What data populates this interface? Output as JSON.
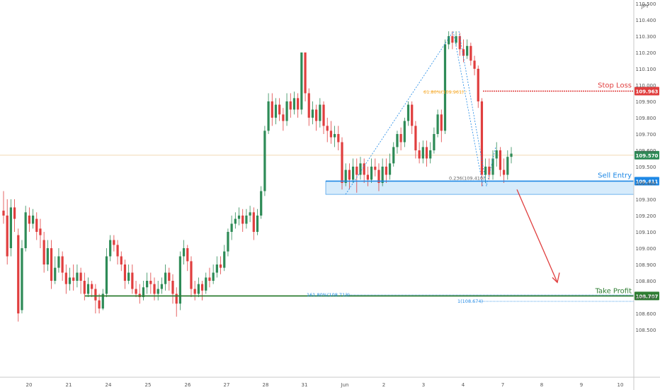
{
  "chart_data": {
    "type": "candlestick",
    "currency_label": "JPY",
    "price_axis": {
      "ticks": [
        "110.500",
        "110.400",
        "110.300",
        "110.200",
        "110.100",
        "110.000",
        "109.900",
        "109.800",
        "109.700",
        "109.600",
        "109.500",
        "109.400",
        "109.300",
        "109.200",
        "109.100",
        "109.000",
        "108.900",
        "108.800",
        "108.700",
        "108.600",
        "108.500"
      ],
      "range": [
        108.47,
        110.55
      ]
    },
    "time_axis": {
      "ticks": [
        "20",
        "21",
        "24",
        "25",
        "26",
        "27",
        "28",
        "31",
        "Jun",
        "2",
        "3",
        "4",
        "7",
        "8",
        "9",
        "10"
      ]
    },
    "colors": {
      "up": "#2e8b57",
      "down": "#e03e3e",
      "stop_loss": "#e03e3e",
      "sell_entry": "#1e88e5",
      "take_profit": "#2e7d32",
      "zone_fill": "#d6ebfb",
      "current_price_line": "#f0d9b5",
      "fib_orange": "#f5a623"
    },
    "levels": {
      "stop_loss": {
        "label": "Stop Loss",
        "price": 109.963,
        "price_text": "109.963"
      },
      "sell_entry": {
        "label": "Sell Entry",
        "price": 109.411,
        "price_text": "109.411"
      },
      "take_profit": {
        "label": "Take Profit",
        "price": 108.707,
        "price_text": "108.707"
      },
      "current": {
        "price": 109.57,
        "price_text": "109.570"
      }
    },
    "fib_labels": {
      "fib_618": "61.80%(109.961)",
      "fib_236": "0.236(109.410)",
      "fib_1618": "161.80%(108.713)",
      "fib_1": "1(108.674)"
    },
    "candles": [
      [
        109.23,
        109.2,
        109.35,
        109.15
      ],
      [
        109.2,
        108.95,
        109.3,
        108.9
      ],
      [
        109.0,
        109.25,
        109.3,
        108.95
      ],
      [
        109.25,
        109.18,
        109.3,
        109.1
      ],
      [
        109.08,
        108.6,
        109.12,
        108.55
      ],
      [
        108.62,
        109.0,
        109.05,
        108.6
      ],
      [
        109.0,
        109.22,
        109.26,
        108.98
      ],
      [
        109.2,
        109.15,
        109.25,
        109.1
      ],
      [
        109.15,
        109.2,
        109.24,
        109.12
      ],
      [
        109.18,
        109.1,
        109.22,
        109.05
      ],
      [
        109.12,
        109.08,
        109.18,
        109.0
      ],
      [
        109.05,
        108.9,
        109.1,
        108.85
      ],
      [
        108.9,
        109.0,
        109.05,
        108.86
      ],
      [
        109.0,
        108.8,
        109.05,
        108.75
      ],
      [
        108.8,
        108.88,
        108.95,
        108.78
      ],
      [
        108.88,
        108.95,
        109.0,
        108.85
      ],
      [
        108.95,
        108.85,
        108.98,
        108.8
      ],
      [
        108.85,
        108.78,
        108.9,
        108.72
      ],
      [
        108.78,
        108.82,
        108.88,
        108.74
      ],
      [
        108.82,
        108.8,
        108.9,
        108.74
      ],
      [
        108.8,
        108.85,
        108.9,
        108.76
      ],
      [
        108.85,
        108.8,
        108.88,
        108.72
      ],
      [
        108.8,
        108.72,
        108.85,
        108.68
      ],
      [
        108.72,
        108.78,
        108.82,
        108.7
      ],
      [
        108.78,
        108.75,
        108.8,
        108.7
      ],
      [
        108.75,
        108.68,
        108.78,
        108.6
      ],
      [
        108.68,
        108.63,
        108.72,
        108.6
      ],
      [
        108.63,
        108.72,
        108.75,
        108.62
      ],
      [
        108.72,
        108.95,
        109.0,
        108.7
      ],
      [
        108.95,
        109.05,
        109.08,
        108.92
      ],
      [
        109.05,
        109.02,
        109.08,
        108.98
      ],
      [
        109.02,
        108.95,
        109.05,
        108.9
      ],
      [
        108.95,
        108.9,
        108.98,
        108.86
      ],
      [
        108.9,
        108.8,
        108.93,
        108.75
      ],
      [
        108.8,
        108.85,
        108.9,
        108.78
      ],
      [
        108.85,
        108.75,
        108.9,
        108.72
      ],
      [
        108.75,
        108.72,
        108.8,
        108.7
      ],
      [
        108.72,
        108.7,
        108.78,
        108.66
      ],
      [
        108.7,
        108.76,
        108.8,
        108.68
      ],
      [
        108.76,
        108.8,
        108.85,
        108.72
      ],
      [
        108.8,
        108.78,
        108.85,
        108.72
      ],
      [
        108.78,
        108.72,
        108.82,
        108.68
      ],
      [
        108.72,
        108.75,
        108.8,
        108.68
      ],
      [
        108.75,
        108.78,
        108.82,
        108.72
      ],
      [
        108.78,
        108.85,
        108.9,
        108.74
      ],
      [
        108.85,
        108.8,
        108.88,
        108.74
      ],
      [
        108.8,
        108.72,
        108.84,
        108.66
      ],
      [
        108.72,
        108.66,
        108.76,
        108.58
      ],
      [
        108.66,
        108.95,
        108.98,
        108.62
      ],
      [
        108.95,
        109.0,
        109.05,
        108.9
      ],
      [
        109.0,
        108.92,
        109.02,
        108.86
      ],
      [
        108.92,
        108.75,
        108.95,
        108.7
      ],
      [
        108.75,
        108.72,
        108.8,
        108.68
      ],
      [
        108.72,
        108.78,
        108.82,
        108.7
      ],
      [
        108.78,
        108.74,
        108.8,
        108.68
      ],
      [
        108.74,
        108.82,
        108.85,
        108.72
      ],
      [
        108.82,
        108.8,
        108.88,
        108.76
      ],
      [
        108.8,
        108.85,
        108.9,
        108.78
      ],
      [
        108.85,
        108.9,
        108.95,
        108.82
      ],
      [
        108.9,
        108.88,
        108.95,
        108.84
      ],
      [
        108.88,
        108.98,
        109.02,
        108.86
      ],
      [
        108.98,
        109.1,
        109.12,
        108.95
      ],
      [
        109.1,
        109.15,
        109.2,
        109.05
      ],
      [
        109.15,
        109.18,
        109.22,
        109.12
      ],
      [
        109.18,
        109.2,
        109.25,
        109.14
      ],
      [
        109.2,
        109.15,
        109.24,
        109.1
      ],
      [
        109.15,
        109.2,
        109.24,
        109.12
      ],
      [
        109.2,
        109.22,
        109.26,
        109.16
      ],
      [
        109.22,
        109.1,
        109.25,
        109.05
      ],
      [
        109.1,
        109.2,
        109.24,
        109.08
      ],
      [
        109.2,
        109.35,
        109.38,
        109.18
      ],
      [
        109.35,
        109.72,
        109.75,
        109.32
      ],
      [
        109.72,
        109.9,
        109.95,
        109.7
      ],
      [
        109.9,
        109.8,
        109.95,
        109.75
      ],
      [
        109.8,
        109.88,
        109.92,
        109.76
      ],
      [
        109.88,
        109.82,
        109.92,
        109.78
      ],
      [
        109.82,
        109.78,
        109.86,
        109.72
      ],
      [
        109.78,
        109.9,
        109.95,
        109.75
      ],
      [
        109.9,
        109.85,
        109.95,
        109.8
      ],
      [
        109.85,
        109.92,
        109.96,
        109.82
      ],
      [
        109.92,
        109.85,
        109.95,
        109.8
      ],
      [
        109.85,
        110.2,
        110.2,
        109.82
      ],
      [
        110.2,
        109.95,
        110.2,
        109.9
      ],
      [
        109.95,
        109.8,
        109.98,
        109.75
      ],
      [
        109.8,
        109.85,
        109.9,
        109.76
      ],
      [
        109.85,
        109.78,
        109.88,
        109.72
      ],
      [
        109.78,
        109.88,
        109.92,
        109.74
      ],
      [
        109.88,
        109.75,
        109.9,
        109.7
      ],
      [
        109.75,
        109.72,
        109.8,
        109.65
      ],
      [
        109.72,
        109.68,
        109.78,
        109.64
      ],
      [
        109.68,
        109.7,
        109.75,
        109.62
      ],
      [
        109.7,
        109.65,
        109.75,
        109.6
      ],
      [
        109.65,
        109.4,
        109.68,
        109.36
      ],
      [
        109.4,
        109.48,
        109.52,
        109.38
      ],
      [
        109.48,
        109.42,
        109.52,
        109.36
      ],
      [
        109.42,
        109.5,
        109.55,
        109.4
      ],
      [
        109.5,
        109.45,
        109.55,
        109.34
      ],
      [
        109.45,
        109.52,
        109.56,
        109.42
      ],
      [
        109.52,
        109.45,
        109.55,
        109.4
      ],
      [
        109.45,
        109.42,
        109.5,
        109.38
      ],
      [
        109.42,
        109.5,
        109.55,
        109.4
      ],
      [
        109.5,
        109.48,
        109.55,
        109.44
      ],
      [
        109.48,
        109.4,
        109.52,
        109.35
      ],
      [
        109.4,
        109.5,
        109.55,
        109.38
      ],
      [
        109.5,
        109.45,
        109.55,
        109.4
      ],
      [
        109.45,
        109.52,
        109.58,
        109.42
      ],
      [
        109.52,
        109.62,
        109.65,
        109.5
      ],
      [
        109.62,
        109.7,
        109.72,
        109.58
      ],
      [
        109.7,
        109.65,
        109.74,
        109.6
      ],
      [
        109.65,
        109.78,
        109.8,
        109.62
      ],
      [
        109.78,
        109.88,
        109.9,
        109.75
      ],
      [
        109.88,
        109.75,
        109.9,
        109.7
      ],
      [
        109.75,
        109.6,
        109.78,
        109.55
      ],
      [
        109.6,
        109.55,
        109.65,
        109.52
      ],
      [
        109.55,
        109.62,
        109.66,
        109.52
      ],
      [
        109.62,
        109.55,
        109.66,
        109.5
      ],
      [
        109.55,
        109.6,
        109.65,
        109.52
      ],
      [
        109.6,
        109.7,
        109.74,
        109.58
      ],
      [
        109.7,
        109.82,
        109.85,
        109.68
      ],
      [
        109.82,
        109.72,
        109.85,
        109.65
      ],
      [
        109.72,
        110.25,
        110.28,
        109.7
      ],
      [
        110.25,
        110.3,
        110.33,
        110.22
      ],
      [
        110.3,
        110.26,
        110.33,
        110.22
      ],
      [
        110.26,
        110.3,
        110.33,
        110.24
      ],
      [
        110.3,
        110.22,
        110.32,
        110.18
      ],
      [
        110.22,
        110.18,
        110.28,
        110.14
      ],
      [
        110.18,
        110.24,
        110.28,
        110.16
      ],
      [
        110.24,
        110.15,
        110.26,
        110.12
      ],
      [
        110.15,
        110.1,
        110.18,
        110.06
      ],
      [
        110.1,
        109.9,
        110.12,
        109.86
      ],
      [
        109.9,
        109.45,
        109.92,
        109.38
      ],
      [
        109.45,
        109.5,
        109.55,
        109.4
      ],
      [
        109.5,
        109.45,
        109.55,
        109.42
      ],
      [
        109.45,
        109.55,
        109.6,
        109.42
      ],
      [
        109.55,
        109.6,
        109.65,
        109.5
      ],
      [
        109.6,
        109.48,
        109.62,
        109.44
      ],
      [
        109.48,
        109.45,
        109.55,
        109.4
      ],
      [
        109.45,
        109.56,
        109.6,
        109.42
      ],
      [
        109.56,
        109.58,
        109.62,
        109.52
      ]
    ]
  }
}
